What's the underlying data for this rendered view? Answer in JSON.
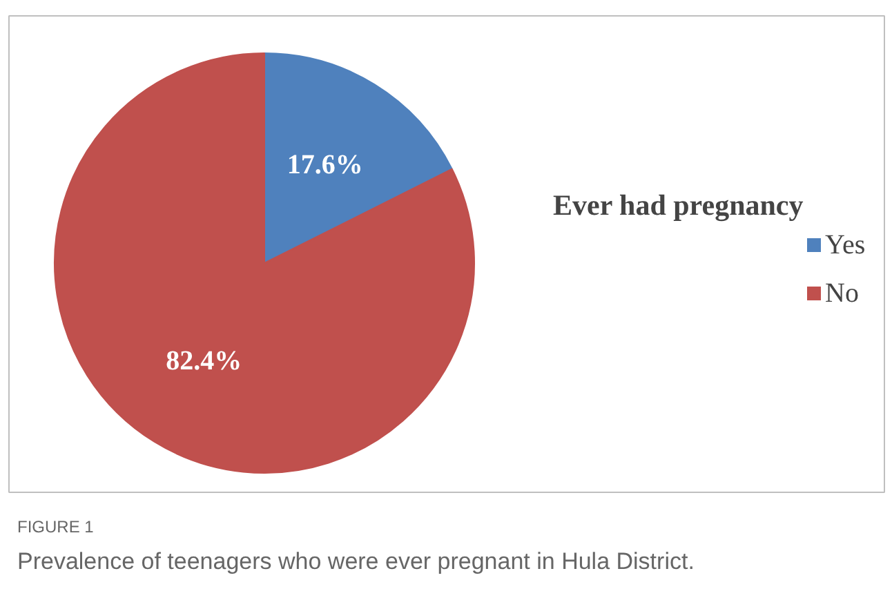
{
  "chart_data": {
    "type": "pie",
    "legend_title": "Ever had pregnancy",
    "categories": [
      "Yes",
      "No"
    ],
    "values": [
      17.6,
      82.4
    ],
    "colors": [
      "#4f81bd",
      "#c0504d"
    ],
    "value_labels": [
      "17.6%",
      "82.4%"
    ],
    "legend": "right",
    "annotations": [
      "FIGURE 1",
      "Prevalence of teenagers who were ever pregnant in Hula District."
    ]
  }
}
